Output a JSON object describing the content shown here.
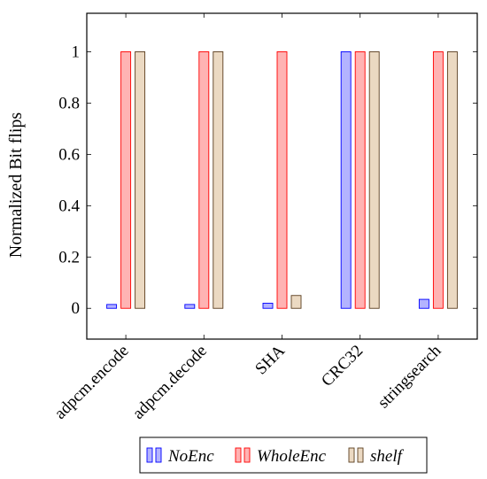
{
  "chart_data": {
    "type": "bar",
    "categories": [
      "adpcm.encode",
      "adpcm.decode",
      "SHA",
      "CRC32",
      "stringsearch"
    ],
    "series": [
      {
        "name": "NoEnc",
        "values": [
          0.015,
          0.015,
          0.02,
          1.0,
          0.035
        ],
        "color": "#b3b3ff",
        "stroke": "#0000ff"
      },
      {
        "name": "WholeEnc",
        "values": [
          1.0,
          1.0,
          1.0,
          1.0,
          1.0
        ],
        "color": "#ffb3b3",
        "stroke": "#ff0000"
      },
      {
        "name": "shelf",
        "values": [
          1.0,
          1.0,
          0.05,
          1.0,
          1.0
        ],
        "color": "#ebd9c2",
        "stroke": "#5a3d1e"
      }
    ],
    "ylabel": "Normalized Bit flips",
    "xlabel": "",
    "ylim": [
      -0.12,
      1.15
    ],
    "yticks": [
      0,
      0.2,
      0.4,
      0.6,
      0.8,
      1
    ],
    "ytick_labels": [
      "0",
      "0.2",
      "0.4",
      "0.6",
      "0.8",
      "1"
    ],
    "legend": {
      "placement": "bottom",
      "entries": [
        "NoEnc",
        "WholeEnc",
        "shelf"
      ]
    }
  }
}
